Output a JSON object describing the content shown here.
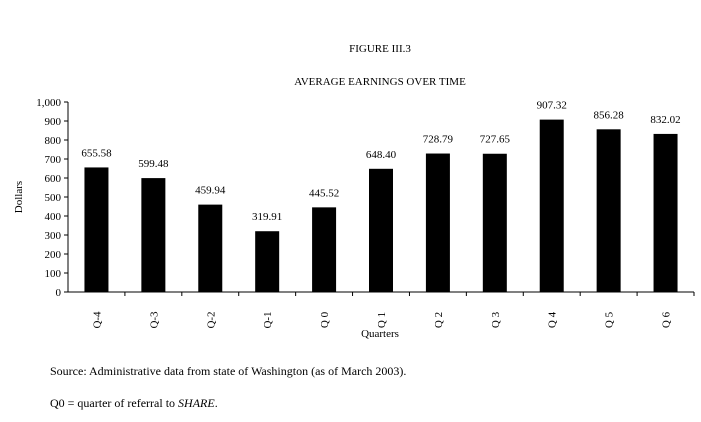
{
  "chart_data": {
    "type": "bar",
    "figure_label": "FIGURE III.3",
    "title": "AVERAGE EARNINGS OVER TIME",
    "xlabel": "Quarters",
    "ylabel": "Dollars",
    "ylim": [
      0,
      1000
    ],
    "yticks": [
      "0",
      "100",
      "200",
      "300",
      "400",
      "500",
      "600",
      "700",
      "800",
      "900",
      "1,000"
    ],
    "categories": [
      "Q-4",
      "Q-3",
      "Q-2",
      "Q-1",
      "Q 0",
      "Q 1",
      "Q 2",
      "Q 3",
      "Q 4",
      "Q 5",
      "Q 6"
    ],
    "values": [
      655.58,
      599.48,
      459.94,
      319.91,
      445.52,
      648.4,
      728.79,
      727.65,
      907.32,
      856.28,
      832.02
    ],
    "value_labels": [
      "655.58",
      "599.48",
      "459.94",
      "319.91",
      "445.52",
      "648.40",
      "728.79",
      "727.65",
      "907.32",
      "856.28",
      "832.02"
    ],
    "bar_color": "#000000",
    "grid": false,
    "legend": "none"
  },
  "notes": {
    "source": "Source:  Administrative data from state of Washington (as of March 2003).",
    "q0_prefix": "Q0 = quarter of referral to ",
    "q0_italic": "SHARE",
    "q0_suffix": "."
  }
}
